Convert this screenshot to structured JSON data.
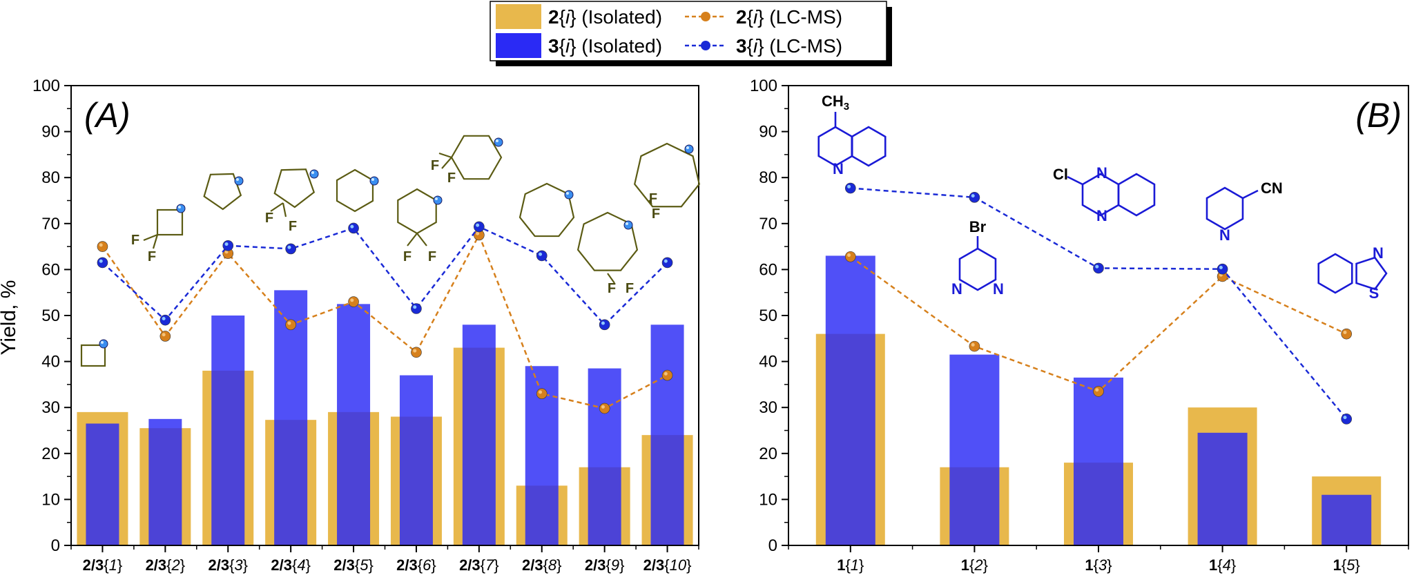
{
  "legend": {
    "entries": [
      {
        "bold": "2",
        "label": "{i} (Isolated)",
        "kind": "bar",
        "color": "#e8b84c"
      },
      {
        "bold": "2",
        "label": "{i} (LC-MS)",
        "kind": "line",
        "color": "#d6801c"
      },
      {
        "bold": "3",
        "label": "{i} (Isolated)",
        "kind": "bar",
        "color": "#2a2af5"
      },
      {
        "bold": "3",
        "label": "{i} (LC-MS)",
        "kind": "line",
        "color": "#1a2ad6"
      }
    ]
  },
  "colors": {
    "bar2": "#e8b84c",
    "bar3": "#2a2af5",
    "line2": "#d6801c",
    "line3": "#1a2ad6"
  },
  "ylabel": "Yield, %",
  "chart_data": [
    {
      "type": "bar",
      "panel": "(A)",
      "ylim": [
        0,
        100
      ],
      "yticks": [
        0,
        10,
        20,
        30,
        40,
        50,
        60,
        70,
        80,
        90,
        100
      ],
      "categories": [
        {
          "bold": "2/3",
          "idx": "{1}"
        },
        {
          "bold": "2/3",
          "idx": "{2}"
        },
        {
          "bold": "2/3",
          "idx": "{3}"
        },
        {
          "bold": "2/3",
          "idx": "{4}"
        },
        {
          "bold": "2/3",
          "idx": "{5}"
        },
        {
          "bold": "2/3",
          "idx": "{6}"
        },
        {
          "bold": "2/3",
          "idx": "{7}"
        },
        {
          "bold": "2/3",
          "idx": "{8}"
        },
        {
          "bold": "2/3",
          "idx": "{9}"
        },
        {
          "bold": "2/3",
          "idx": "{10}"
        }
      ],
      "series": [
        {
          "key": "iso2",
          "type": "bar",
          "values": [
            29,
            25.5,
            38,
            27.3,
            29,
            28,
            43,
            13,
            17,
            24
          ]
        },
        {
          "key": "iso3",
          "type": "bar",
          "values": [
            26.5,
            27.5,
            50,
            55.5,
            52.5,
            37,
            48,
            39,
            38.5,
            48
          ]
        },
        {
          "key": "lc2",
          "type": "line",
          "values": [
            65,
            45.5,
            63.5,
            48,
            53,
            42,
            67.5,
            33,
            29.8,
            37
          ]
        },
        {
          "key": "lc3",
          "type": "line",
          "values": [
            61.5,
            49,
            65.2,
            64.5,
            69,
            51.5,
            69.3,
            63,
            48,
            61.5
          ]
        }
      ]
    },
    {
      "type": "bar",
      "panel": "(B)",
      "ylim": [
        0,
        100
      ],
      "yticks": [
        0,
        10,
        20,
        30,
        40,
        50,
        60,
        70,
        80,
        90,
        100
      ],
      "categories": [
        {
          "bold": "1",
          "idx": "{1}"
        },
        {
          "bold": "1",
          "idx": "{2}"
        },
        {
          "bold": "1",
          "idx": "{3}"
        },
        {
          "bold": "1",
          "idx": "{4}"
        },
        {
          "bold": "1",
          "idx": "{5}"
        }
      ],
      "series": [
        {
          "key": "iso2",
          "type": "bar",
          "values": [
            46,
            17,
            18,
            30,
            15
          ]
        },
        {
          "key": "iso3",
          "type": "bar",
          "values": [
            63,
            41.5,
            36.5,
            24.5,
            11
          ]
        },
        {
          "key": "lc2",
          "type": "line",
          "values": [
            62.8,
            43.3,
            33.5,
            58.5,
            46
          ]
        },
        {
          "key": "lc3",
          "type": "line",
          "values": [
            77.7,
            75.7,
            60.3,
            60.1,
            27.5
          ]
        }
      ]
    }
  ],
  "structures_a": {
    "f": "F",
    "f2": "F"
  },
  "structures_b": {
    "ch3": "CH3",
    "n": "N",
    "cl": "Cl",
    "br": "Br",
    "cn": "CN",
    "s": "S"
  }
}
